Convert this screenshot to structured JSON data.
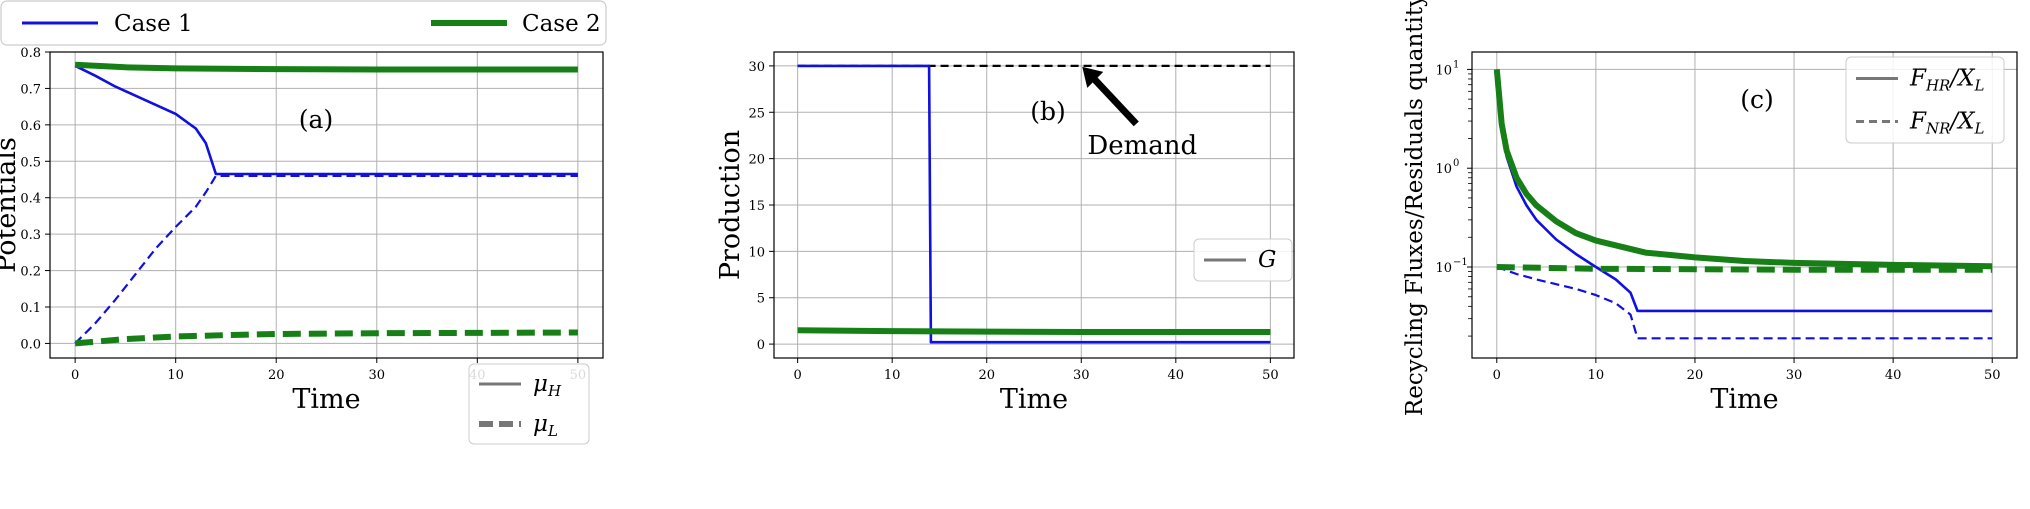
{
  "figure_legend": {
    "entries": [
      {
        "label": "Case 1",
        "color": "#1010e0"
      },
      {
        "label": "Case 2",
        "color": "#168016"
      }
    ]
  },
  "chart_data": [
    {
      "type": "line",
      "panel_label": "(a)",
      "xlabel": "Time",
      "ylabel": "Potentials",
      "xlim": [
        -2.5,
        52.5
      ],
      "ylim": [
        -0.04,
        0.8
      ],
      "xticks": [
        0,
        10,
        20,
        30,
        40,
        50
      ],
      "yticks": [
        0.0,
        0.1,
        0.2,
        0.3,
        0.4,
        0.5,
        0.6,
        0.7,
        0.8
      ],
      "xtick_labels": [
        "0",
        "10",
        "20",
        "30",
        "40",
        "50"
      ],
      "ytick_labels": [
        "0.0",
        "0.1",
        "0.2",
        "0.3",
        "0.4",
        "0.5",
        "0.6",
        "0.7",
        "0.8"
      ],
      "grid": true,
      "legend": {
        "placement": "lower-right",
        "entries": [
          {
            "label": "μ",
            "sub": "H",
            "style": "solid"
          },
          {
            "label": "μ",
            "sub": "L",
            "style": "dashed"
          }
        ]
      },
      "series": [
        {
          "case": 1,
          "style": "solid",
          "color": "#1010e0",
          "x": [
            0,
            2,
            4,
            6,
            8,
            10,
            12,
            13,
            14,
            14.5,
            20,
            30,
            40,
            50
          ],
          "y": [
            0.762,
            0.735,
            0.705,
            0.68,
            0.655,
            0.63,
            0.59,
            0.55,
            0.465,
            0.465,
            0.465,
            0.465,
            0.465,
            0.465
          ]
        },
        {
          "case": 1,
          "style": "dashed",
          "color": "#1010e0",
          "x": [
            0,
            2,
            4,
            6,
            8,
            10,
            12,
            13,
            14,
            14.5,
            20,
            30,
            40,
            50
          ],
          "y": [
            0.0,
            0.055,
            0.12,
            0.19,
            0.26,
            0.32,
            0.375,
            0.415,
            0.46,
            0.46,
            0.46,
            0.46,
            0.46,
            0.46
          ]
        },
        {
          "case": 2,
          "style": "solid",
          "color": "#168016",
          "x": [
            0,
            5,
            10,
            20,
            30,
            40,
            50
          ],
          "y": [
            0.765,
            0.758,
            0.755,
            0.753,
            0.752,
            0.752,
            0.752
          ]
        },
        {
          "case": 2,
          "style": "dashed",
          "color": "#168016",
          "x": [
            0,
            5,
            10,
            15,
            20,
            30,
            40,
            50
          ],
          "y": [
            0.0,
            0.012,
            0.019,
            0.023,
            0.026,
            0.028,
            0.029,
            0.03
          ]
        }
      ]
    },
    {
      "type": "line",
      "panel_label": "(b)",
      "xlabel": "Time",
      "ylabel": "Production",
      "xlim": [
        -2.5,
        52.5
      ],
      "ylim": [
        -1.5,
        31.5
      ],
      "xticks": [
        0,
        10,
        20,
        30,
        40,
        50
      ],
      "yticks": [
        0,
        5,
        10,
        15,
        20,
        25,
        30
      ],
      "xtick_labels": [
        "0",
        "10",
        "20",
        "30",
        "40",
        "50"
      ],
      "ytick_labels": [
        "0",
        "5",
        "10",
        "15",
        "20",
        "25",
        "30"
      ],
      "grid": true,
      "legend": {
        "placement": "center-right",
        "entries": [
          {
            "label": "G",
            "sub": "",
            "style": "solid"
          }
        ]
      },
      "annotation": {
        "text": "Demand",
        "arrow_to": [
          30,
          30
        ]
      },
      "series": [
        {
          "name": "Demand",
          "style": "dashed",
          "color": "#000000",
          "x": [
            0,
            50
          ],
          "y": [
            30,
            30
          ]
        },
        {
          "case": 1,
          "style": "solid",
          "color": "#1010e0",
          "x": [
            0,
            13.9,
            14,
            14.1,
            50
          ],
          "y": [
            30,
            30,
            15,
            0.2,
            0.2
          ]
        },
        {
          "case": 2,
          "style": "solid",
          "color": "#168016",
          "x": [
            0,
            10,
            20,
            30,
            40,
            50
          ],
          "y": [
            1.5,
            1.4,
            1.35,
            1.3,
            1.3,
            1.3
          ]
        }
      ]
    },
    {
      "type": "line",
      "panel_label": "(c)",
      "xlabel": "Time",
      "ylabel": "Recycling Fluxes/Residuals quantity",
      "yscale": "log",
      "xlim": [
        -2.5,
        52.5
      ],
      "ylim": [
        0.012,
        15
      ],
      "xticks": [
        0,
        10,
        20,
        30,
        40,
        50
      ],
      "yticks": [
        0.1,
        1,
        10
      ],
      "xtick_labels": [
        "0",
        "10",
        "20",
        "30",
        "40",
        "50"
      ],
      "ytick_labels": [
        "10",
        "10",
        "10"
      ],
      "ytick_exponents": [
        "−1",
        "0",
        "1"
      ],
      "grid": true,
      "legend": {
        "placement": "upper-right",
        "entries": [
          {
            "label": "F",
            "sub": "HR",
            "suffix": "/X",
            "sub2": "L",
            "style": "solid"
          },
          {
            "label": "F",
            "sub": "NR",
            "suffix": "/X",
            "sub2": "L",
            "style": "dashed"
          }
        ]
      },
      "series": [
        {
          "case": 1,
          "style": "solid",
          "color": "#1010e0",
          "x": [
            0,
            0.5,
            1,
            2,
            3,
            4,
            6,
            8,
            10,
            12,
            13.5,
            14.2,
            20,
            30,
            40,
            50
          ],
          "y": [
            10,
            2.5,
            1.3,
            0.65,
            0.42,
            0.3,
            0.19,
            0.135,
            0.1,
            0.075,
            0.055,
            0.036,
            0.036,
            0.036,
            0.036,
            0.036
          ]
        },
        {
          "case": 1,
          "style": "dashed",
          "color": "#1010e0",
          "x": [
            0,
            2,
            4,
            6,
            8,
            10,
            12,
            13.5,
            14.2,
            20,
            30,
            40,
            50
          ],
          "y": [
            0.1,
            0.085,
            0.075,
            0.067,
            0.06,
            0.052,
            0.043,
            0.033,
            0.019,
            0.019,
            0.019,
            0.019,
            0.019
          ]
        },
        {
          "case": 2,
          "style": "solid",
          "color": "#168016",
          "x": [
            0,
            0.5,
            1,
            2,
            3,
            4,
            6,
            8,
            10,
            15,
            20,
            25,
            30,
            40,
            50
          ],
          "y": [
            10,
            2.8,
            1.5,
            0.8,
            0.55,
            0.42,
            0.29,
            0.22,
            0.185,
            0.14,
            0.125,
            0.115,
            0.11,
            0.105,
            0.102
          ]
        },
        {
          "case": 2,
          "style": "dashed",
          "color": "#168016",
          "x": [
            0,
            10,
            20,
            30,
            40,
            50
          ],
          "y": [
            0.1,
            0.096,
            0.095,
            0.094,
            0.094,
            0.094
          ]
        }
      ]
    }
  ]
}
